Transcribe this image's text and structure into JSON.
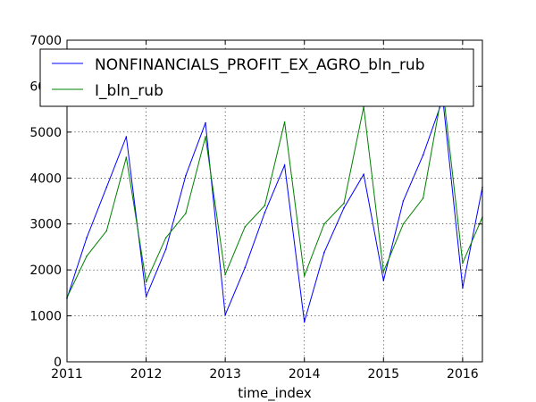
{
  "chart_data": {
    "type": "line",
    "title": "",
    "xlabel": "time_index",
    "ylabel": "",
    "xlim": [
      2011.0,
      2016.25
    ],
    "ylim": [
      0,
      7000
    ],
    "x_ticks": [
      2011,
      2012,
      2013,
      2014,
      2015,
      2016
    ],
    "y_ticks": [
      0,
      1000,
      2000,
      3000,
      4000,
      5000,
      6000,
      7000
    ],
    "grid": true,
    "legend_position": "top",
    "x": [
      2011.0,
      2011.25,
      2011.5,
      2011.75,
      2012.0,
      2012.25,
      2012.5,
      2012.75,
      2013.0,
      2013.25,
      2013.5,
      2013.75,
      2014.0,
      2014.25,
      2014.5,
      2014.75,
      2015.0,
      2015.25,
      2015.5,
      2015.75,
      2016.0,
      2016.25
    ],
    "series": [
      {
        "name": "NONFINANCIALS_PROFIT_EX_AGRO_bln_rub",
        "color": "#0000ff",
        "values": [
          1380,
          2700,
          3800,
          4900,
          1420,
          2450,
          4050,
          5200,
          1020,
          2050,
          3250,
          4280,
          870,
          2380,
          3350,
          4080,
          1770,
          3500,
          4500,
          5720,
          1610,
          3800
        ]
      },
      {
        "name": "I_bln_rub",
        "color": "#008000",
        "values": [
          1400,
          2300,
          2850,
          4450,
          1740,
          2700,
          3230,
          4900,
          1900,
          2940,
          3400,
          5220,
          1870,
          3000,
          3450,
          5550,
          1960,
          3000,
          3560,
          5950,
          2150,
          3150
        ]
      }
    ]
  }
}
